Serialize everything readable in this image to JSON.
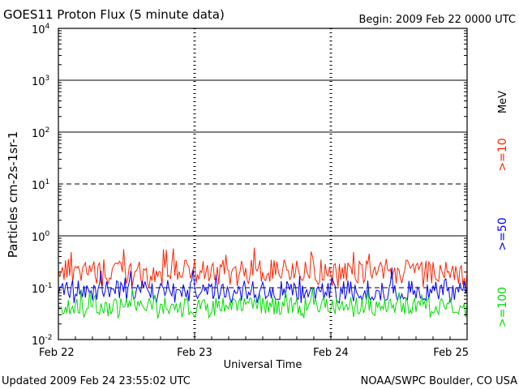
{
  "header": {
    "title": "GOES11 Proton Flux (5 minute data)",
    "begin": "Begin: 2009 Feb 22 0000 UTC"
  },
  "footer": {
    "updated": "Updated 2009 Feb 24 23:55:02 UTC",
    "credit": "NOAA/SWPC Boulder, CO USA"
  },
  "chart_data": {
    "type": "line",
    "title": "GOES11 Proton Flux (5 minute data)",
    "xlabel": "Universal Time",
    "ylabel": "Particles cm-2s-1sr-1",
    "yscale": "log",
    "ylim": [
      0.01,
      10000
    ],
    "y_tick_labels": [
      {
        "base": "10",
        "exp": "-2"
      },
      {
        "base": "10",
        "exp": "-1"
      },
      {
        "base": "10",
        "exp": "0"
      },
      {
        "base": "10",
        "exp": "1"
      },
      {
        "base": "10",
        "exp": "2"
      },
      {
        "base": "10",
        "exp": "3"
      },
      {
        "base": "10",
        "exp": "4"
      }
    ],
    "x_ticks": [
      "Feb 22",
      "Feb 23",
      "Feb 24",
      "Feb 25"
    ],
    "xlim": [
      "2009-02-22 00:00",
      "2009-02-25 00:00"
    ],
    "thresholds": [
      {
        "value": 10,
        "style": "dashed"
      },
      {
        "value": 0.1,
        "style": "dashed"
      }
    ],
    "legend": {
      "placement": "right",
      "unit": "MeV",
      "entries": [
        {
          "label": ">=10",
          "color": "#ff2200"
        },
        {
          "label": ">=50",
          "color": "#0000ff"
        },
        {
          "label": ">=100",
          "color": "#00dd00"
        }
      ]
    },
    "series": [
      {
        "energy": ">=10 MeV",
        "color": "#ff2200",
        "typical": 0.22,
        "low": 0.1,
        "high": 0.6
      },
      {
        "energy": ">=50 MeV",
        "color": "#0000ff",
        "typical": 0.09,
        "low": 0.05,
        "high": 0.25
      },
      {
        "energy": ">=100 MeV",
        "color": "#00dd00",
        "typical": 0.045,
        "low": 0.025,
        "high": 0.1
      }
    ]
  }
}
